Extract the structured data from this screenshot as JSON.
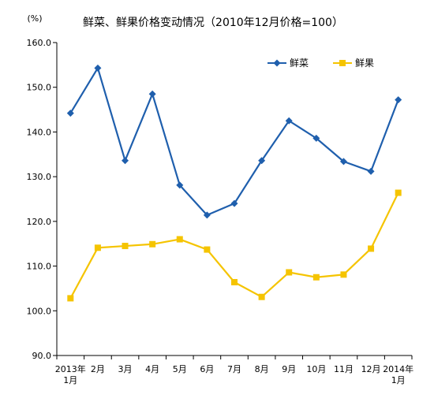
{
  "chart_data": {
    "type": "line",
    "title": "鲜菜、鲜果价格变动情况（2010年12月价格=100）",
    "unit_label": "(%)",
    "categories": [
      [
        "2013年",
        "1月"
      ],
      [
        "2月"
      ],
      [
        "3月"
      ],
      [
        "4月"
      ],
      [
        "5月"
      ],
      [
        "6月"
      ],
      [
        "7月"
      ],
      [
        "8月"
      ],
      [
        "9月"
      ],
      [
        "10月"
      ],
      [
        "11月"
      ],
      [
        "12月"
      ],
      [
        "2014年",
        "1月"
      ]
    ],
    "ylim": [
      90,
      160
    ],
    "yticks": [
      "90.0",
      "100.0",
      "110.0",
      "120.0",
      "130.0",
      "140.0",
      "150.0",
      "160.0"
    ],
    "grid": false,
    "legend_position": "top-right",
    "series": [
      {
        "name": "鲜菜",
        "color": "#1f5fad",
        "marker": "diamond",
        "values": [
          144.2,
          154.3,
          133.6,
          148.5,
          128.1,
          121.4,
          124.0,
          133.6,
          142.5,
          138.6,
          133.4,
          131.2,
          147.2
        ]
      },
      {
        "name": "鲜果",
        "color": "#f5c400",
        "marker": "square",
        "values": [
          102.8,
          114.1,
          114.5,
          114.9,
          116.0,
          113.7,
          106.4,
          103.1,
          108.6,
          107.5,
          108.1,
          113.9,
          126.4
        ]
      }
    ]
  }
}
